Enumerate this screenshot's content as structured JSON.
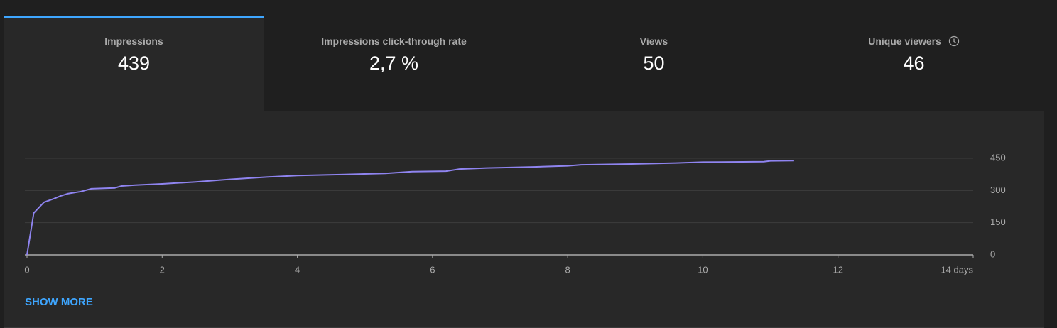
{
  "tabs": [
    {
      "label": "Impressions",
      "value": "439"
    },
    {
      "label": "Impressions click-through rate",
      "value": "2,7 %"
    },
    {
      "label": "Views",
      "value": "50"
    },
    {
      "label": "Unique viewers",
      "value": "46"
    }
  ],
  "chart_data": {
    "type": "line",
    "color": "#8f84f0",
    "x": [
      0,
      0.1,
      0.17,
      0.25,
      0.4,
      0.5,
      0.6,
      0.8,
      0.95,
      1.3,
      1.4,
      1.6,
      2.0,
      2.5,
      3.0,
      3.5,
      4.0,
      4.7,
      5.3,
      5.7,
      6.2,
      6.4,
      6.8,
      7.5,
      8.0,
      8.2,
      9.0,
      9.6,
      10.0,
      10.9,
      11.0,
      11.35
    ],
    "values": [
      0,
      195,
      218,
      245,
      262,
      275,
      285,
      295,
      308,
      312,
      321,
      325,
      331,
      340,
      352,
      362,
      370,
      375,
      380,
      388,
      390,
      400,
      405,
      410,
      415,
      420,
      424,
      428,
      432,
      434,
      438,
      439
    ],
    "xlim": [
      0,
      14
    ],
    "xticks": [
      0,
      2,
      4,
      6,
      8,
      10,
      12,
      {
        "value": 14,
        "label": "14 days"
      }
    ],
    "ylim": [
      0,
      450
    ],
    "yticks": [
      0,
      150,
      300,
      450
    ],
    "grid": true
  },
  "show_more": "SHOW MORE"
}
